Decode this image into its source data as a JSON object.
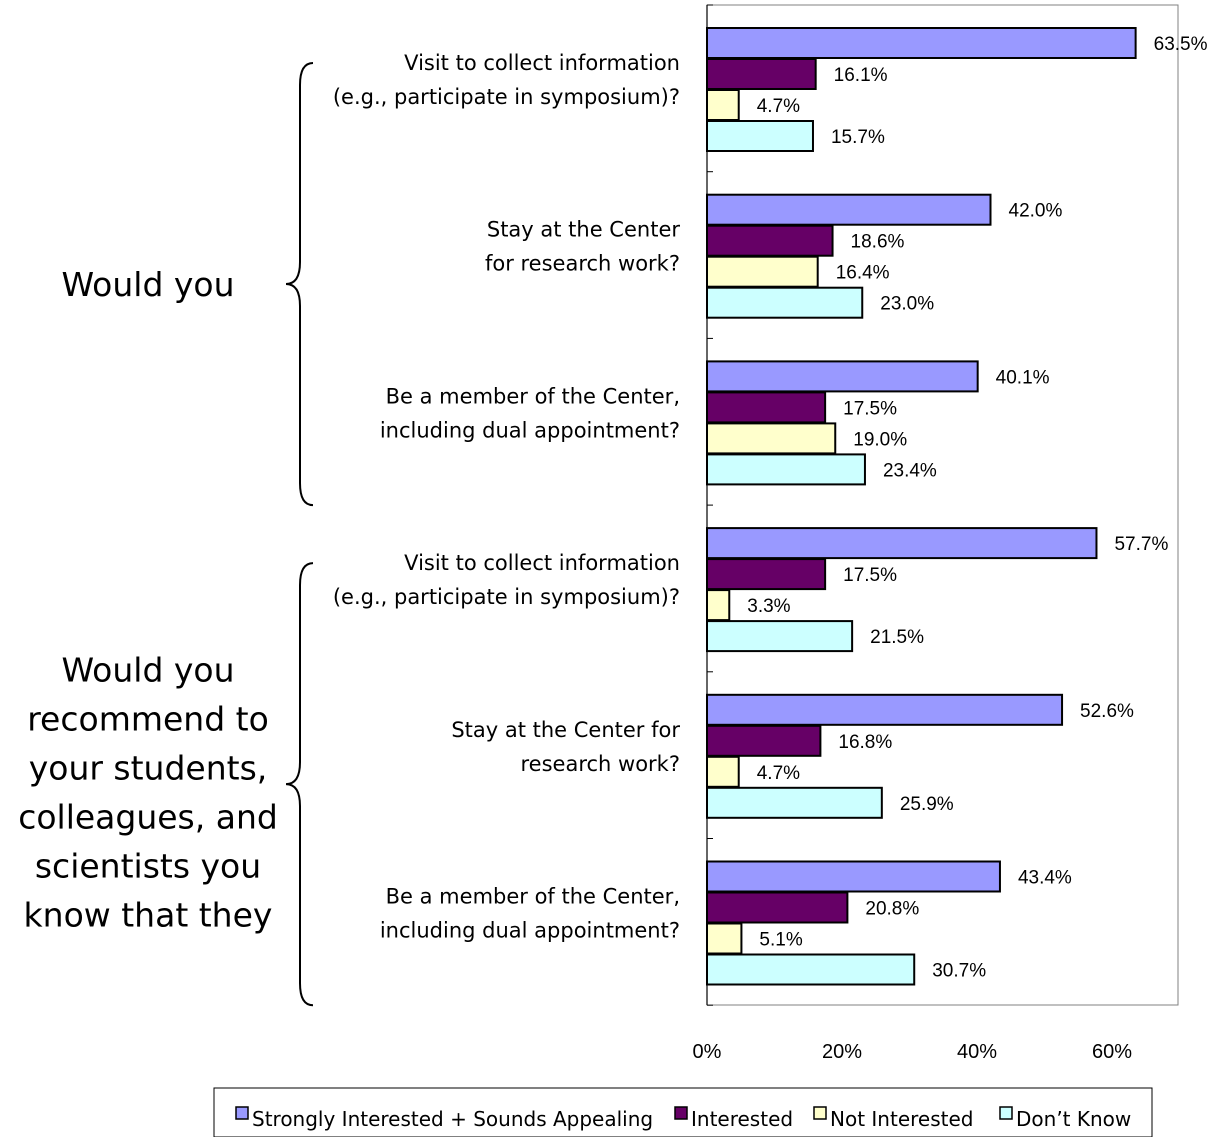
{
  "chart_data": {
    "type": "bar",
    "orientation": "horizontal",
    "groups": [
      {
        "label": [
          "Would  you"
        ],
        "category_indices": [
          0,
          1,
          2
        ]
      },
      {
        "label": [
          "Would you",
          "recommend to",
          "your students,",
          "colleagues, and",
          "scientists you",
          "know that they"
        ],
        "category_indices": [
          3,
          4,
          5
        ]
      }
    ],
    "categories": [
      [
        "Visit to collect information",
        "(e.g., participate in symposium)?"
      ],
      [
        "Stay at the Center",
        "for research work?"
      ],
      [
        "Be a member of the Center,",
        "including dual appointment?"
      ],
      [
        "Visit to collect information",
        "(e.g., participate in symposium)?"
      ],
      [
        "Stay at the Center for",
        "research work?"
      ],
      [
        "Be a member of the Center,",
        "including dual appointment?"
      ]
    ],
    "series": [
      {
        "name": "Strongly Interested + Sounds Appealing",
        "color": "#9999ff",
        "values": [
          63.5,
          42.0,
          40.1,
          57.7,
          52.6,
          43.4
        ]
      },
      {
        "name": "Interested",
        "color": "#660066",
        "values": [
          16.1,
          18.6,
          17.5,
          17.5,
          16.8,
          20.8
        ]
      },
      {
        "name": "Not Interested",
        "color": "#ffffcc",
        "values": [
          4.7,
          16.4,
          19.0,
          3.3,
          4.7,
          5.1
        ]
      },
      {
        "name": "Don’t Know",
        "color": "#ccffff",
        "values": [
          15.7,
          23.0,
          23.4,
          21.5,
          25.9,
          30.7
        ]
      }
    ],
    "x_ticks": [
      0,
      20,
      40,
      60
    ],
    "x_tick_labels": [
      "0%",
      "20%",
      "40%",
      "60%"
    ],
    "xlim": [
      0,
      70
    ],
    "value_suffix": "%",
    "grid": true,
    "legend_position": "bottom"
  }
}
